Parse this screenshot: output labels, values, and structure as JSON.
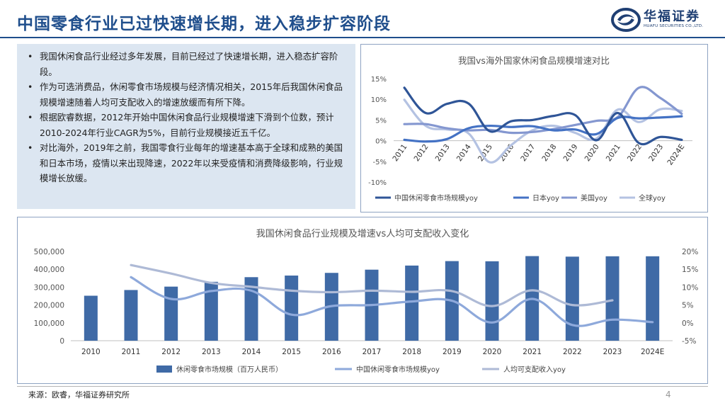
{
  "page": {
    "title": "中国零食行业已过快速增长期，进入稳步扩容阶段",
    "page_number": "4",
    "source": "来源：欧睿，华福证券研究所"
  },
  "logo": {
    "name": "华福证券",
    "sub": "HUAFU SECURITIES CO.,LTD."
  },
  "bullets": [
    "我国休闲食品行业经过多年发展，目前已经过了快速增长期，进入稳态扩容阶段。",
    "作为可选消费品，休闲零食市场规模与经济情况相关，2015年后我国休闲食品规模增速随着人均可支配收入的增速放缓而有所下降。",
    "根据欧睿数据，2012年开始中国休闲食品行业规模增速下滑到个位数，预计2010-2024年行业CAGR为5%，目前行业规模接近五千亿。",
    "对比海外，2019年之前，我国零食行业每年的增速基本高于全球和成熟的美国和日本市场，疫情以来出现降速，2022年以来受疫情和消费降级影响，行业规模增长放缓。"
  ],
  "colors": {
    "title": "#1f4e8c",
    "bar": "#3f6aa6",
    "china": "#2f5597",
    "japan": "#4472c4",
    "us": "#8497d0",
    "global": "#b4c2e2",
    "china_yoy_bottom": "#8ea9db",
    "income_yoy": "#aebad6"
  },
  "chart_data": [
    {
      "type": "line",
      "title": "我国vs海外国家休闲食品规模增速对比",
      "categories": [
        "2011",
        "2012",
        "2013",
        "2014",
        "2015",
        "2016",
        "2017",
        "2018",
        "2019",
        "2020",
        "2021",
        "2022",
        "2023",
        "2024E"
      ],
      "y_ticks": [
        "15%",
        "10%",
        "5%",
        "0%",
        "-5%",
        "-10%"
      ],
      "ylim": [
        -10,
        15
      ],
      "series": [
        {
          "name": "中国休闲零食市场规模yoy",
          "values": [
            12.8,
            6.7,
            8.9,
            9.0,
            2.3,
            4.7,
            5.0,
            6.0,
            6.2,
            0.1,
            6.7,
            -0.6,
            0.9,
            0.2
          ]
        },
        {
          "name": "日本yoy",
          "values": [
            0.2,
            -0.2,
            0.4,
            3.0,
            3.6,
            3.3,
            3.5,
            2.5,
            2.7,
            1.6,
            5.5,
            5.4,
            5.6,
            5.9
          ]
        },
        {
          "name": "美国yoy",
          "values": [
            4.0,
            4.0,
            3.0,
            2.5,
            2.6,
            1.9,
            2.1,
            2.8,
            3.8,
            4.8,
            5.7,
            12.8,
            10.3,
            6.5
          ]
        },
        {
          "name": "全球yoy",
          "values": [
            9.9,
            3.6,
            2.7,
            1.8,
            -5.2,
            -1.1,
            2.5,
            3.6,
            1.9,
            0.5,
            7.5,
            4.5,
            7.6,
            7.2
          ]
        }
      ]
    },
    {
      "type": "bar",
      "title": "我国休闲食品行业规模及增速vs人均可支配收入变化",
      "categories": [
        "2010",
        "2011",
        "2012",
        "2013",
        "2014",
        "2015",
        "2016",
        "2017",
        "2018",
        "2019",
        "2020",
        "2021",
        "2022",
        "2023",
        "2024E"
      ],
      "y_left_ticks": [
        "500,000",
        "400,000",
        "300,000",
        "200,000",
        "100,000",
        "0"
      ],
      "y_right_ticks": [
        "20%",
        "15%",
        "10%",
        "5%",
        "0%",
        "-5%"
      ],
      "ylim_left": [
        0,
        500000
      ],
      "ylim_right": [
        -5,
        20
      ],
      "series": [
        {
          "name": "休闲零食市场规模（百万人民币）",
          "axis": "left",
          "values": [
            252000,
            284000,
            303000,
            330000,
            356000,
            365000,
            380000,
            398000,
            421000,
            446000,
            445000,
            474000,
            471000,
            473000,
            473000
          ]
        },
        {
          "name": "中国休闲零食市场规模yoy",
          "axis": "right",
          "values": [
            null,
            12.8,
            6.7,
            8.9,
            9.0,
            2.3,
            4.7,
            5.0,
            6.0,
            6.2,
            0.1,
            6.7,
            -0.6,
            0.9,
            0.2
          ]
        },
        {
          "name": "人均可支配收入yoy",
          "axis": "right",
          "values": [
            null,
            16.2,
            13.8,
            11.2,
            10.1,
            9.0,
            8.6,
            9.0,
            8.7,
            8.9,
            4.7,
            9.1,
            5.0,
            6.3,
            null
          ]
        }
      ]
    }
  ]
}
